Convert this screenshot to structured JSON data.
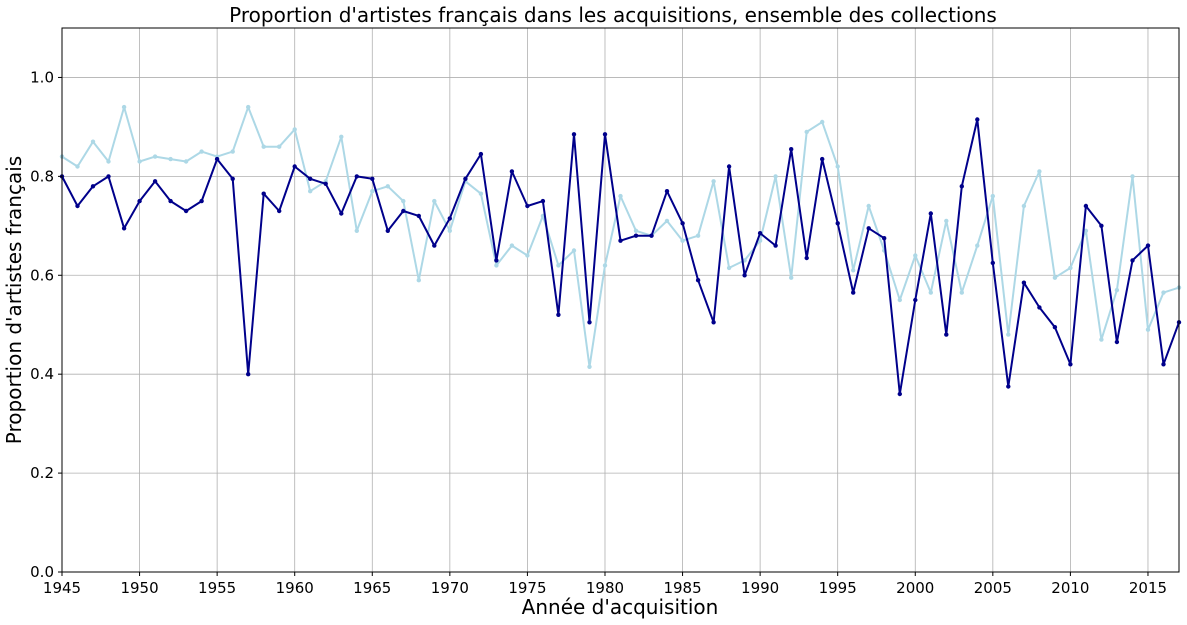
{
  "chart_data": {
    "type": "line",
    "title": "Proportion d'artistes français dans les acquisitions, ensemble des collections",
    "xlabel": "Année d'acquisition",
    "ylabel": "Proportion d'artistes français",
    "xlim": [
      1945,
      2017
    ],
    "ylim": [
      0.0,
      1.1
    ],
    "xticks": [
      1945,
      1950,
      1955,
      1960,
      1965,
      1970,
      1975,
      1980,
      1985,
      1990,
      1995,
      2000,
      2005,
      2010,
      2015
    ],
    "xtick_labels": [
      "1945",
      "1950",
      "1955",
      "1960",
      "1965",
      "1970",
      "1975",
      "1980",
      "1985",
      "1990",
      "1995",
      "2000",
      "2005",
      "2010",
      "2015"
    ],
    "yticks": [
      0.0,
      0.2,
      0.4,
      0.6,
      0.8,
      1.0
    ],
    "ytick_labels": [
      "0.0",
      "0.2",
      "0.4",
      "0.6",
      "0.8",
      "1.0"
    ],
    "grid": true,
    "legend": "none",
    "series": [
      {
        "color": "#add8e6",
        "x": [
          1945,
          1946,
          1947,
          1948,
          1949,
          1950,
          1951,
          1952,
          1953,
          1954,
          1955,
          1956,
          1957,
          1958,
          1959,
          1960,
          1961,
          1962,
          1963,
          1964,
          1965,
          1966,
          1967,
          1968,
          1969,
          1970,
          1971,
          1972,
          1973,
          1974,
          1975,
          1976,
          1977,
          1978,
          1979,
          1980,
          1981,
          1982,
          1983,
          1984,
          1985,
          1986,
          1987,
          1988,
          1989,
          1990,
          1991,
          1992,
          1993,
          1994,
          1995,
          1996,
          1997,
          1998,
          1999,
          2000,
          2001,
          2002,
          2003,
          2004,
          2005,
          2006,
          2007,
          2008,
          2009,
          2010,
          2011,
          2012,
          2013,
          2014,
          2015,
          2016,
          2017
        ],
        "y": [
          0.84,
          0.82,
          0.87,
          0.83,
          0.94,
          0.83,
          0.84,
          0.835,
          0.83,
          0.85,
          0.84,
          0.85,
          0.94,
          0.86,
          0.86,
          0.895,
          0.77,
          0.79,
          0.88,
          0.69,
          0.77,
          0.78,
          0.75,
          0.59,
          0.75,
          0.69,
          0.79,
          0.765,
          0.62,
          0.66,
          0.64,
          0.72,
          0.62,
          0.65,
          0.415,
          0.62,
          0.76,
          0.69,
          0.68,
          0.71,
          0.67,
          0.68,
          0.79,
          0.615,
          0.63,
          0.67,
          0.8,
          0.595,
          0.89,
          0.91,
          0.82,
          0.61,
          0.74,
          0.65,
          0.55,
          0.64,
          0.565,
          0.71,
          0.565,
          0.66,
          0.76,
          0.48,
          0.74,
          0.81,
          0.595,
          0.615,
          0.69,
          0.47,
          0.57,
          0.8,
          0.49,
          0.565,
          0.575
        ]
      },
      {
        "color": "#00008b",
        "x": [
          1945,
          1946,
          1947,
          1948,
          1949,
          1950,
          1951,
          1952,
          1953,
          1954,
          1955,
          1956,
          1957,
          1958,
          1959,
          1960,
          1961,
          1962,
          1963,
          1964,
          1965,
          1966,
          1967,
          1968,
          1969,
          1970,
          1971,
          1972,
          1973,
          1974,
          1975,
          1976,
          1977,
          1978,
          1979,
          1980,
          1981,
          1982,
          1983,
          1984,
          1985,
          1986,
          1987,
          1988,
          1989,
          1990,
          1991,
          1992,
          1993,
          1994,
          1995,
          1996,
          1997,
          1998,
          1999,
          2000,
          2001,
          2002,
          2003,
          2004,
          2005,
          2006,
          2007,
          2008,
          2009,
          2010,
          2011,
          2012,
          2013,
          2014,
          2015,
          2016,
          2017
        ],
        "y": [
          0.8,
          0.74,
          0.78,
          0.8,
          0.695,
          0.75,
          0.79,
          0.75,
          0.73,
          0.75,
          0.835,
          0.795,
          0.4,
          0.765,
          0.73,
          0.82,
          0.795,
          0.785,
          0.725,
          0.8,
          0.795,
          0.69,
          0.73,
          0.72,
          0.66,
          0.715,
          0.795,
          0.845,
          0.63,
          0.81,
          0.74,
          0.75,
          0.52,
          0.885,
          0.505,
          0.885,
          0.67,
          0.68,
          0.68,
          0.77,
          0.705,
          0.59,
          0.505,
          0.82,
          0.6,
          0.685,
          0.66,
          0.855,
          0.635,
          0.835,
          0.705,
          0.565,
          0.695,
          0.675,
          0.36,
          0.55,
          0.725,
          0.48,
          0.78,
          0.915,
          0.625,
          0.375,
          0.585,
          0.535,
          0.495,
          0.42,
          0.74,
          0.7,
          0.465,
          0.63,
          0.66,
          0.42,
          0.505
        ]
      }
    ]
  }
}
